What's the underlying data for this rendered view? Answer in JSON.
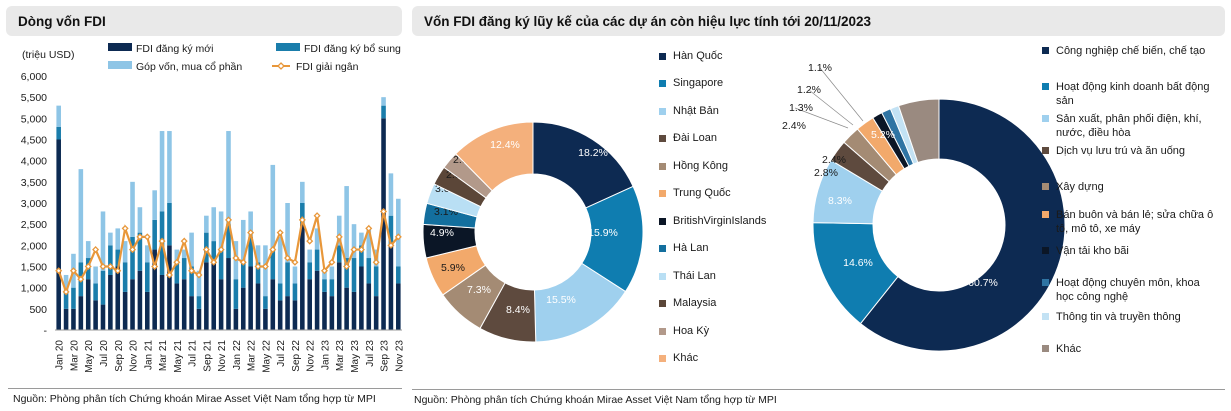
{
  "left_panel": {
    "title": "Dòng vốn FDI",
    "source": "Nguồn: Phòng phân tích Chứng khoán Mirae Asset Việt Nam tổng hợp từ MPI"
  },
  "right_panel": {
    "title": "Vốn FDI đăng ký lũy kế của các dự án còn hiệu lực tính tới 20/11/2023",
    "source": "Nguồn: Phòng phân tích Chứng khoán Mirae Asset Việt Nam tổng hợp từ MPI"
  },
  "chart_data": [
    {
      "type": "bar",
      "stacked": true,
      "title": "",
      "ylabel": "(triệu USD)",
      "xlabel": "",
      "ylim": [
        0,
        6000
      ],
      "y_ticks": [
        "-",
        "500",
        "1,000",
        "1,500",
        "2,000",
        "2,500",
        "3,000",
        "3,500",
        "4,000",
        "4,500",
        "5,000",
        "5,500",
        "6,000"
      ],
      "x_tick_labels": [
        "Jan 20",
        "Mar 20",
        "May 20",
        "Jul 20",
        "Sep 20",
        "Nov 20",
        "Jan 21",
        "Mar 21",
        "May 21",
        "Jul 21",
        "Sep 21",
        "Nov 21",
        "Jan 22",
        "Mar 22",
        "May 22",
        "Jul 22",
        "Sep 22",
        "Nov 22",
        "Jan 23",
        "Mar 23",
        "May 23",
        "Jul 23",
        "Sep 23",
        "Nov 23"
      ],
      "legend_position": "top",
      "categories": [
        "Jan 20",
        "Feb 20",
        "Mar 20",
        "Apr 20",
        "May 20",
        "Jun 20",
        "Jul 20",
        "Aug 20",
        "Sep 20",
        "Oct 20",
        "Nov 20",
        "Dec 20",
        "Jan 21",
        "Feb 21",
        "Mar 21",
        "Apr 21",
        "May 21",
        "Jun 21",
        "Jul 21",
        "Aug 21",
        "Sep 21",
        "Oct 21",
        "Nov 21",
        "Dec 21",
        "Jan 22",
        "Feb 22",
        "Mar 22",
        "Apr 22",
        "May 22",
        "Jun 22",
        "Jul 22",
        "Aug 22",
        "Sep 22",
        "Oct 22",
        "Nov 22",
        "Dec 22",
        "Jan 23",
        "Feb 23",
        "Mar 23",
        "Apr 23",
        "May 23",
        "Jun 23",
        "Jul 23",
        "Aug 23",
        "Sep 23",
        "Oct 23",
        "Nov 23"
      ],
      "series": [
        {
          "name": "FDI đăng ký mới",
          "kind": "bar",
          "color": "#0d2a52",
          "values": [
            4500,
            500,
            500,
            800,
            1200,
            700,
            600,
            1300,
            1500,
            900,
            1200,
            1400,
            900,
            1900,
            1300,
            2000,
            1100,
            1200,
            800,
            500,
            1600,
            1600,
            1200,
            1700,
            500,
            1000,
            1500,
            1100,
            500,
            1200,
            700,
            800,
            700,
            2500,
            1200,
            1400,
            900,
            800,
            1600,
            1000,
            900,
            1500,
            1100,
            800,
            5000,
            2000,
            1100
          ]
        },
        {
          "name": "FDI đăng ký bổ sung",
          "kind": "bar",
          "color": "#1a7dab",
          "values": [
            300,
            400,
            500,
            800,
            500,
            400,
            800,
            700,
            400,
            700,
            1000,
            900,
            700,
            700,
            1500,
            1000,
            500,
            500,
            700,
            300,
            700,
            500,
            700,
            800,
            700,
            600,
            700,
            500,
            300,
            700,
            400,
            800,
            400,
            500,
            400,
            500,
            300,
            400,
            400,
            700,
            800,
            500,
            600,
            700,
            300,
            700,
            400
          ]
        },
        {
          "name": "Góp vốn, mua cổ phần",
          "kind": "bar",
          "color": "#8ec5e6",
          "values": [
            500,
            400,
            800,
            2200,
            400,
            400,
            1400,
            300,
            500,
            500,
            1300,
            600,
            400,
            700,
            1900,
            1700,
            300,
            200,
            800,
            600,
            400,
            800,
            900,
            2200,
            900,
            1000,
            600,
            400,
            1200,
            2000,
            1100,
            1400,
            400,
            500,
            300,
            500,
            200,
            300,
            700,
            1700,
            800,
            300,
            700,
            400,
            200,
            1000,
            1600
          ]
        },
        {
          "name": "FDI giải ngân",
          "kind": "line",
          "color": "#e8973a",
          "values": [
            1400,
            900,
            1400,
            1200,
            1500,
            1900,
            1500,
            1500,
            1400,
            2400,
            1900,
            2200,
            2200,
            1500,
            2100,
            1300,
            1600,
            2100,
            1400,
            1300,
            1900,
            1600,
            1900,
            2600,
            1700,
            1600,
            2300,
            1500,
            1500,
            1900,
            2300,
            1700,
            1600,
            2600,
            2100,
            2700,
            1400,
            1600,
            2200,
            1500,
            1900,
            1900,
            2400,
            1600,
            2800,
            2000,
            2200
          ]
        }
      ]
    },
    {
      "type": "pie",
      "donut": true,
      "title": "",
      "legend_position": "left",
      "slices": [
        {
          "label": "Hàn Quốc",
          "value": 18.2,
          "display": "18.2%",
          "color": "#0d2a52",
          "text_color": "#ffffff"
        },
        {
          "label": "Singapore",
          "value": 15.9,
          "display": "15.9%",
          "color": "#0f7db0",
          "text_color": "#ffffff"
        },
        {
          "label": "Nhật Bản",
          "value": 15.5,
          "display": "15.5%",
          "color": "#9fd0ee",
          "text_color": "#ffffff"
        },
        {
          "label": "Đài Loan",
          "value": 8.4,
          "display": "8.4%",
          "color": "#5e4a3e",
          "text_color": "#ffffff"
        },
        {
          "label": "Hồng Kông",
          "value": 7.3,
          "display": "7.3%",
          "color": "#a48b74",
          "text_color": "#ffffff"
        },
        {
          "label": "Trung Quốc",
          "value": 5.9,
          "display": "5.9%",
          "color": "#f2a96b",
          "text_color": "#1a1a1a"
        },
        {
          "label": "BritishVirginIslands",
          "value": 4.9,
          "display": "4.9%",
          "color": "#0b1626",
          "text_color": "#ffffff"
        },
        {
          "label": "Hà Lan",
          "value": 3.1,
          "display": "3.1%",
          "color": "#136f9e",
          "text_color": "#1a1a1a"
        },
        {
          "label": "Thái Lan",
          "value": 3.0,
          "display": "3.0%",
          "color": "#b9dff4",
          "text_color": "#1a1a1a"
        },
        {
          "label": "Malaysia",
          "value": 2.8,
          "display": "2.8%",
          "color": "#5b4638",
          "text_color": "#1a1a1a"
        },
        {
          "label": "Hoa Kỳ",
          "value": 2.6,
          "display": "2.6%",
          "color": "#b2998a",
          "text_color": "#1a1a1a"
        },
        {
          "label": "Khác",
          "value": 12.4,
          "display": "12.4%",
          "color": "#f4b07c",
          "text_color": "#ffffff"
        }
      ]
    },
    {
      "type": "pie",
      "donut": true,
      "title": "",
      "legend_position": "right",
      "slices": [
        {
          "label": "Công nghiệp chế biến, chế tạo",
          "value": 60.7,
          "display": "60.7%",
          "color": "#0d2a52",
          "text_color": "#ffffff"
        },
        {
          "label": "Hoạt động kinh doanh bất động sản",
          "value": 14.6,
          "display": "14.6%",
          "color": "#0f7db0",
          "text_color": "#ffffff"
        },
        {
          "label": "Sản xuất, phân phối điện, khí, nước, điều hòa",
          "value": 8.3,
          "display": "8.3%",
          "color": "#9fd0ee",
          "text_color": "#ffffff"
        },
        {
          "label": "Dịch vụ lưu trú và ăn uống",
          "value": 2.8,
          "display": "2.8%",
          "color": "#5e4a3e",
          "text_color": "#1a1a1a"
        },
        {
          "label": "Xây dựng",
          "value": 2.4,
          "display": "2.4%",
          "color": "#a48b74",
          "text_color": "#1a1a1a"
        },
        {
          "label": "Bán buôn và bán lẻ; sửa chữa ô tô, mô tô, xe máy",
          "value": 2.4,
          "display": "2.4%",
          "color": "#f2a96b",
          "text_color": "#1a1a1a"
        },
        {
          "label": "Vận tải kho bãi",
          "value": 1.3,
          "display": "1.3%",
          "color": "#0b1626",
          "text_color": "#1a1a1a"
        },
        {
          "label": "Hoạt động chuyên môn, khoa học công nghệ",
          "value": 1.2,
          "display": "1.2%",
          "color": "#2f74a3",
          "text_color": "#1a1a1a"
        },
        {
          "label": "Thông tin và truyền thông",
          "value": 1.1,
          "display": "1.1%",
          "color": "#c3e2f4",
          "text_color": "#1a1a1a"
        },
        {
          "label": "Khác",
          "value": 5.2,
          "display": "5.2%",
          "color": "#9a8a80",
          "text_color": "#ffffff"
        }
      ]
    }
  ]
}
